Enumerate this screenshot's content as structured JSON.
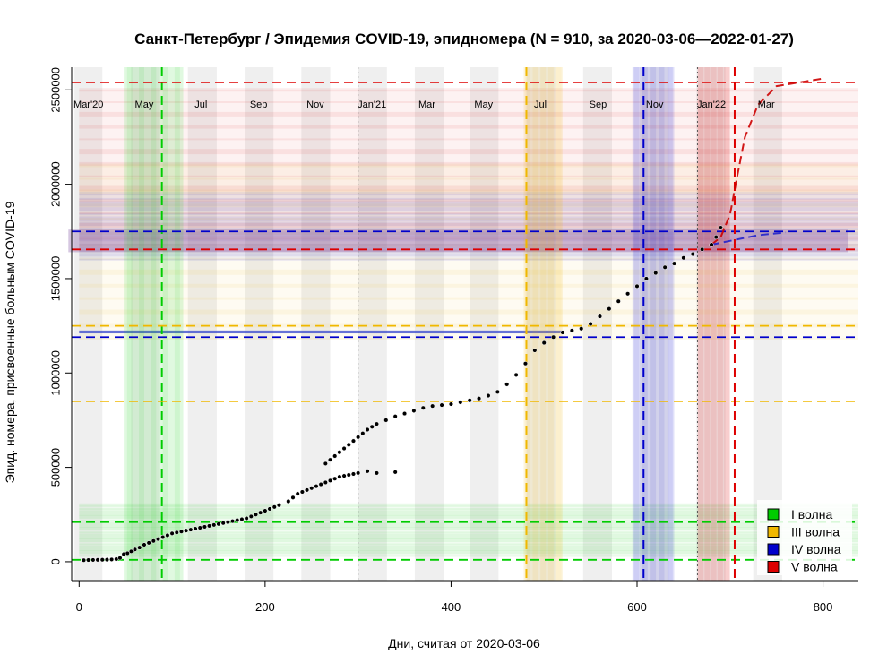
{
  "chart_data": {
    "type": "scatter",
    "title": "Санкт-Петербург / Эпидемия COVID-19, эпидномера (N = 910, за 2020-03-06—2022-01-27)",
    "xlabel": "Дни, считая от 2020-03-06",
    "ylabel": "Эпид. номера, присвоенные больным COVID-19",
    "xlim": [
      -8,
      838
    ],
    "ylim": [
      -100000,
      2620000
    ],
    "x_ticks": [
      0,
      200,
      400,
      600,
      800
    ],
    "y_ticks": [
      0,
      500000,
      1000000,
      1500000,
      2000000,
      2500000
    ],
    "y_tick_labels": [
      "0",
      "500000",
      "1000000",
      "1500000",
      "2000000",
      "2500000"
    ],
    "month_labels": [
      {
        "x": 10,
        "label": "Mar'20"
      },
      {
        "x": 70,
        "label": "May"
      },
      {
        "x": 131,
        "label": "Jul"
      },
      {
        "x": 193,
        "label": "Sep"
      },
      {
        "x": 254,
        "label": "Nov"
      },
      {
        "x": 315,
        "label": "Jan'21"
      },
      {
        "x": 374,
        "label": "Mar"
      },
      {
        "x": 435,
        "label": "May"
      },
      {
        "x": 496,
        "label": "Jul"
      },
      {
        "x": 558,
        "label": "Sep"
      },
      {
        "x": 619,
        "label": "Nov"
      },
      {
        "x": 680,
        "label": "Jan'22"
      },
      {
        "x": 739,
        "label": "Mar"
      }
    ],
    "month_bands": [
      [
        -5,
        25
      ],
      [
        56,
        87
      ],
      [
        117,
        148
      ],
      [
        178,
        209
      ],
      [
        239,
        270
      ],
      [
        300,
        331
      ],
      [
        361,
        392
      ],
      [
        420,
        451
      ],
      [
        481,
        512
      ],
      [
        542,
        573
      ],
      [
        603,
        634
      ],
      [
        664,
        695
      ],
      [
        725,
        756
      ]
    ],
    "dotted_vlines": [
      300,
      665
    ],
    "waves": [
      {
        "name": "I волна",
        "color": "#00cc00",
        "vline": 89,
        "vband": [
          48,
          112
        ],
        "hlines": [
          10000,
          210000
        ],
        "hband": [
          30000,
          300000
        ]
      },
      {
        "name": "III волна",
        "color": "#f0b800",
        "vline": 481,
        "vband": [
          478,
          520
        ],
        "hlines": [
          850000,
          1250000
        ],
        "hband": [
          1180000,
          2100000
        ]
      },
      {
        "name": "IV волна",
        "color": "#0000cc",
        "vline": 607,
        "vband": [
          595,
          640
        ],
        "hlines": [
          1190000,
          1750000
        ],
        "hband": [
          1600000,
          1950000
        ]
      },
      {
        "name": "V волна",
        "color": "#dd0000",
        "vline": 705,
        "vband": [
          665,
          700
        ],
        "hlines": [
          1655000,
          2540000
        ],
        "hband": [
          1650000,
          2500000
        ]
      }
    ],
    "legend_position": "bottom-right",
    "series": [
      {
        "name": "Эпидномера",
        "marker": "circle",
        "color": "#000000",
        "points": [
          [
            5,
            8000
          ],
          [
            10,
            9000
          ],
          [
            15,
            9500
          ],
          [
            20,
            10000
          ],
          [
            25,
            10500
          ],
          [
            30,
            11000
          ],
          [
            35,
            12000
          ],
          [
            40,
            14000
          ],
          [
            44,
            20000
          ],
          [
            48,
            40000
          ],
          [
            52,
            45000
          ],
          [
            56,
            55000
          ],
          [
            60,
            65000
          ],
          [
            65,
            75000
          ],
          [
            70,
            90000
          ],
          [
            75,
            100000
          ],
          [
            80,
            110000
          ],
          [
            85,
            120000
          ],
          [
            90,
            130000
          ],
          [
            95,
            140000
          ],
          [
            100,
            150000
          ],
          [
            105,
            155000
          ],
          [
            110,
            160000
          ],
          [
            115,
            165000
          ],
          [
            120,
            170000
          ],
          [
            125,
            175000
          ],
          [
            130,
            180000
          ],
          [
            135,
            185000
          ],
          [
            140,
            190000
          ],
          [
            145,
            195000
          ],
          [
            150,
            200000
          ],
          [
            155,
            205000
          ],
          [
            160,
            210000
          ],
          [
            165,
            215000
          ],
          [
            170,
            220000
          ],
          [
            175,
            225000
          ],
          [
            180,
            230000
          ],
          [
            185,
            240000
          ],
          [
            190,
            250000
          ],
          [
            195,
            260000
          ],
          [
            200,
            270000
          ],
          [
            205,
            280000
          ],
          [
            210,
            290000
          ],
          [
            215,
            300000
          ],
          [
            225,
            320000
          ],
          [
            230,
            340000
          ],
          [
            235,
            360000
          ],
          [
            240,
            370000
          ],
          [
            245,
            380000
          ],
          [
            250,
            390000
          ],
          [
            255,
            400000
          ],
          [
            260,
            410000
          ],
          [
            265,
            420000
          ],
          [
            270,
            430000
          ],
          [
            275,
            440000
          ],
          [
            280,
            450000
          ],
          [
            285,
            455000
          ],
          [
            290,
            460000
          ],
          [
            295,
            465000
          ],
          [
            300,
            470000
          ],
          [
            310,
            480000
          ],
          [
            320,
            470000
          ],
          [
            340,
            475000
          ],
          [
            265,
            520000
          ],
          [
            270,
            540000
          ],
          [
            275,
            560000
          ],
          [
            280,
            580000
          ],
          [
            285,
            600000
          ],
          [
            290,
            620000
          ],
          [
            295,
            640000
          ],
          [
            300,
            660000
          ],
          [
            305,
            680000
          ],
          [
            310,
            700000
          ],
          [
            315,
            715000
          ],
          [
            320,
            730000
          ],
          [
            330,
            750000
          ],
          [
            340,
            770000
          ],
          [
            350,
            785000
          ],
          [
            360,
            800000
          ],
          [
            370,
            815000
          ],
          [
            380,
            825000
          ],
          [
            390,
            830000
          ],
          [
            400,
            835000
          ],
          [
            410,
            845000
          ],
          [
            420,
            855000
          ],
          [
            430,
            865000
          ],
          [
            440,
            880000
          ],
          [
            450,
            900000
          ],
          [
            460,
            940000
          ],
          [
            470,
            990000
          ],
          [
            480,
            1050000
          ],
          [
            490,
            1120000
          ],
          [
            500,
            1160000
          ],
          [
            510,
            1190000
          ],
          [
            520,
            1215000
          ],
          [
            530,
            1225000
          ],
          [
            540,
            1235000
          ],
          [
            550,
            1260000
          ],
          [
            560,
            1300000
          ],
          [
            570,
            1340000
          ],
          [
            580,
            1380000
          ],
          [
            590,
            1420000
          ],
          [
            600,
            1460000
          ],
          [
            610,
            1500000
          ],
          [
            620,
            1530000
          ],
          [
            630,
            1560000
          ],
          [
            640,
            1580000
          ],
          [
            650,
            1610000
          ],
          [
            660,
            1630000
          ],
          [
            670,
            1655000
          ],
          [
            680,
            1680000
          ],
          [
            685,
            1720000
          ],
          [
            690,
            1770000
          ]
        ]
      }
    ]
  }
}
